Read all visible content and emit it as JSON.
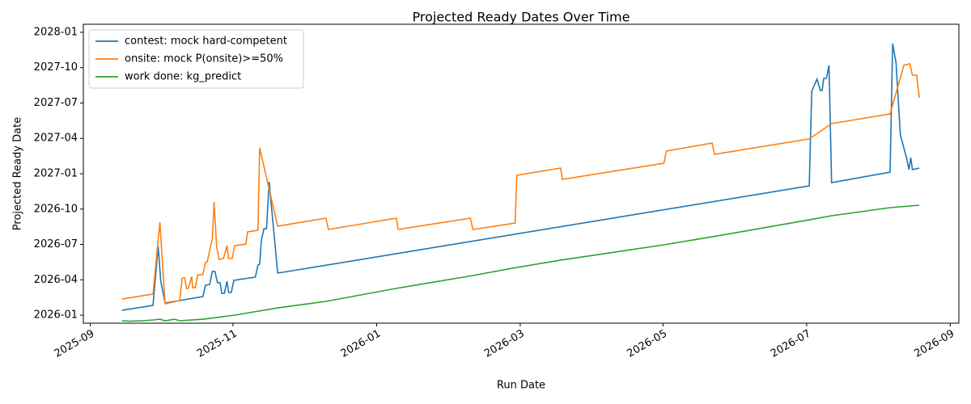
{
  "chart_data": {
    "type": "line",
    "title": "Projected Ready Dates Over Time",
    "x_label": "Run Date",
    "y_label": "Projected Ready Date",
    "xlim": [
      2025.659,
      2026.677
    ],
    "ylim": [
      2025.943,
      2028.057
    ],
    "xticks": [
      {
        "value": 2025.667,
        "label": "2025-09"
      },
      {
        "value": 2025.833,
        "label": "2025-11"
      },
      {
        "value": 2026.0,
        "label": "2026-01"
      },
      {
        "value": 2026.167,
        "label": "2026-03"
      },
      {
        "value": 2026.333,
        "label": "2026-05"
      },
      {
        "value": 2026.5,
        "label": "2026-07"
      },
      {
        "value": 2026.667,
        "label": "2026-09"
      }
    ],
    "yticks": [
      {
        "value": 2026.0,
        "label": "2026-01"
      },
      {
        "value": 2026.25,
        "label": "2026-04"
      },
      {
        "value": 2026.5,
        "label": "2026-07"
      },
      {
        "value": 2026.75,
        "label": "2026-10"
      },
      {
        "value": 2027.0,
        "label": "2027-01"
      },
      {
        "value": 2027.25,
        "label": "2027-04"
      },
      {
        "value": 2027.5,
        "label": "2027-07"
      },
      {
        "value": 2027.75,
        "label": "2027-10"
      },
      {
        "value": 2028.0,
        "label": "2028-01"
      }
    ],
    "legend": "upper left",
    "series": [
      {
        "name": "contest: mock hard-competent",
        "color": "#1f77b4",
        "x": [
          2025.704,
          2025.74,
          2025.746,
          2025.749,
          2025.754,
          2025.798,
          2025.801,
          2025.806,
          2025.809,
          2025.812,
          2025.815,
          2025.818,
          2025.82,
          2025.823,
          2025.826,
          2025.828,
          2025.831,
          2025.834,
          2025.859,
          2025.862,
          2025.864,
          2025.866,
          2025.869,
          2025.872,
          2025.875,
          2025.885,
          2026.503,
          2026.506,
          2026.512,
          2026.516,
          2026.518,
          2026.52,
          2026.523,
          2026.526,
          2026.529,
          2026.597,
          2026.6,
          2026.604,
          2026.609,
          2026.616,
          2026.619,
          2026.621,
          2026.623,
          2026.631
        ],
        "values": [
          2026.034,
          2026.069,
          2026.486,
          2026.24,
          2026.086,
          2026.131,
          2026.211,
          2026.217,
          2026.309,
          2026.309,
          2026.229,
          2026.229,
          2026.154,
          2026.154,
          2026.24,
          2026.16,
          2026.16,
          2026.246,
          2026.269,
          2026.354,
          2026.36,
          2026.531,
          2026.611,
          2026.611,
          2026.943,
          2026.297,
          2026.914,
          2027.583,
          2027.669,
          2027.589,
          2027.589,
          2027.674,
          2027.674,
          2027.766,
          2026.937,
          2027.011,
          2027.92,
          2027.783,
          2027.274,
          2027.114,
          2027.029,
          2027.114,
          2027.029,
          2027.04
        ]
      },
      {
        "name": "onsite: mock P(onsite)>=50%",
        "color": "#ff7f0e",
        "x": [
          2025.704,
          2025.74,
          2025.748,
          2025.754,
          2025.771,
          2025.774,
          2025.777,
          2025.779,
          2025.781,
          2025.785,
          2025.786,
          2025.789,
          2025.792,
          2025.798,
          2025.801,
          2025.803,
          2025.809,
          2025.811,
          2025.814,
          2025.817,
          2025.822,
          2025.826,
          2025.828,
          2025.832,
          2025.835,
          2025.848,
          2025.85,
          2025.862,
          2025.864,
          2025.885,
          2025.941,
          2025.944,
          2026.023,
          2026.025,
          2026.109,
          2026.112,
          2026.161,
          2026.163,
          2026.214,
          2026.216,
          2026.334,
          2026.337,
          2026.39,
          2026.393,
          2026.503,
          2026.529,
          2026.597,
          2026.613,
          2026.62,
          2026.623,
          2026.628,
          2026.631
        ],
        "values": [
          2026.114,
          2026.149,
          2026.657,
          2026.08,
          2026.103,
          2026.263,
          2026.263,
          2026.189,
          2026.189,
          2026.274,
          2026.194,
          2026.194,
          2026.286,
          2026.286,
          2026.371,
          2026.377,
          2026.543,
          2026.8,
          2026.486,
          2026.394,
          2026.4,
          2026.491,
          2026.4,
          2026.4,
          2026.491,
          2026.503,
          2026.589,
          2026.6,
          2027.183,
          2026.629,
          2026.686,
          2026.606,
          2026.686,
          2026.606,
          2026.686,
          2026.606,
          2026.651,
          2026.989,
          2027.04,
          2026.96,
          2027.074,
          2027.16,
          2027.217,
          2027.137,
          2027.246,
          2027.354,
          2027.423,
          2027.766,
          2027.777,
          2027.697,
          2027.697,
          2027.537
        ]
      },
      {
        "name": "work done: kg_predict",
        "color": "#2ca02c",
        "x": [
          2025.704,
          2025.713,
          2025.727,
          2025.74,
          2025.748,
          2025.754,
          2025.765,
          2025.771,
          2025.798,
          2025.835,
          2025.885,
          2025.941,
          2026.023,
          2026.112,
          2026.163,
          2026.214,
          2026.334,
          2026.39,
          2026.503,
          2026.529,
          2026.597,
          2026.631
        ],
        "values": [
          2025.96,
          2025.957,
          2025.96,
          2025.966,
          2025.971,
          2025.96,
          2025.971,
          2025.96,
          2025.971,
          2026.0,
          2026.051,
          2026.097,
          2026.189,
          2026.28,
          2026.337,
          2026.389,
          2026.497,
          2026.554,
          2026.674,
          2026.703,
          2026.76,
          2026.777
        ]
      }
    ]
  }
}
